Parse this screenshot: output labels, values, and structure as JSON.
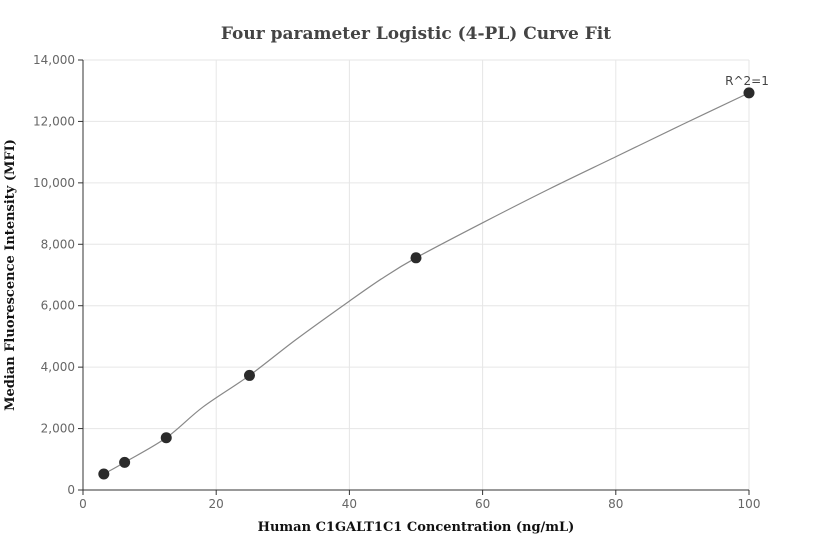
{
  "chart_data": {
    "type": "scatter",
    "title": "Four parameter Logistic (4-PL) Curve Fit",
    "xlabel": "Human C1GALT1C1 Concentration (ng/mL)",
    "ylabel": "Median Fluorescence Intensity (MFI)",
    "xlim": [
      0,
      100
    ],
    "ylim": [
      0,
      14000
    ],
    "x_ticks": [
      0,
      20,
      40,
      60,
      80,
      100
    ],
    "y_ticks": [
      0,
      2000,
      4000,
      6000,
      8000,
      10000,
      12000,
      14000
    ],
    "x_tick_labels": [
      "0",
      "20",
      "40",
      "60",
      "80",
      "100"
    ],
    "y_tick_labels": [
      "0",
      "2,000",
      "4,000",
      "6,000",
      "8,000",
      "10,000",
      "12,000",
      "14,000"
    ],
    "grid": true,
    "series": [
      {
        "x": [
          3.125,
          6.25,
          12.5,
          25,
          50,
          100
        ],
        "y": [
          520,
          900,
          1700,
          3730,
          7560,
          12930
        ],
        "color": "#2b2b2b"
      }
    ],
    "fit_curve": {
      "x": [
        3.125,
        6.25,
        12.5,
        18,
        25,
        32,
        40,
        45,
        50,
        60,
        70,
        80,
        90,
        100
      ],
      "y": [
        520,
        900,
        1700,
        2700,
        3730,
        4900,
        6150,
        6900,
        7560,
        8700,
        9800,
        10850,
        11900,
        12930
      ],
      "color": "#888888"
    },
    "annotation": {
      "text": "R^2=1",
      "x": 100,
      "y": 12930
    }
  }
}
